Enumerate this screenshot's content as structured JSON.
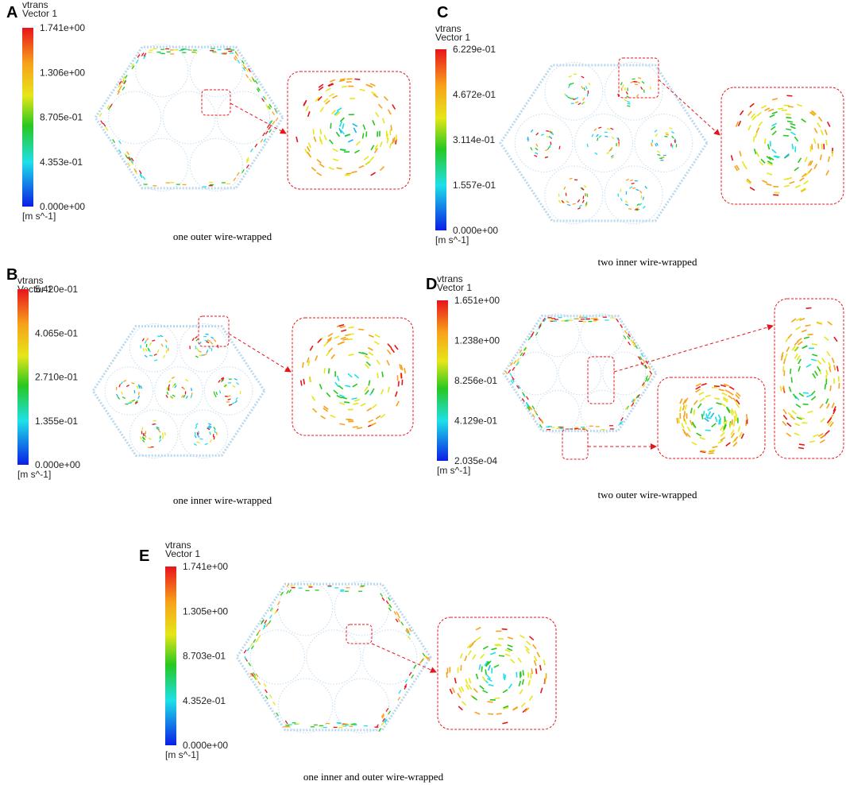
{
  "panels": [
    {
      "label": "A",
      "legend": {
        "title": "vtrans",
        "subtitle": "Vector 1",
        "ticks": [
          "1.741e+00",
          "1.306e+00",
          "8.705e-01",
          "4.353e-01",
          "0.000e+00"
        ],
        "unit": "[m s^-1]"
      },
      "caption": "one outer wire-wrapped"
    },
    {
      "label": "B",
      "legend": {
        "title": "vtrans",
        "subtitle": "Vector 1",
        "ticks": [
          "5.420e-01",
          "4.065e-01",
          "2.710e-01",
          "1.355e-01",
          "0.000e+00"
        ],
        "unit": "[m s^-1]"
      },
      "caption": "one inner wire-wrapped"
    },
    {
      "label": "C",
      "legend": {
        "title": "vtrans",
        "subtitle": "Vector 1",
        "ticks": [
          "6.229e-01",
          "4.672e-01",
          "3.114e-01",
          "1.557e-01",
          "0.000e+00"
        ],
        "unit": "[m s^-1]"
      },
      "caption": "two inner wire-wrapped"
    },
    {
      "label": "D",
      "legend": {
        "title": "vtrans",
        "subtitle": "Vector 1",
        "ticks": [
          "1.651e+00",
          "1.238e+00",
          "8.256e-01",
          "4.129e-01",
          "2.035e-04"
        ],
        "unit": "[m s^-1]"
      },
      "caption": "two outer wire-wrapped"
    },
    {
      "label": "E",
      "legend": {
        "title": "vtrans",
        "subtitle": "Vector 1",
        "ticks": [
          "1.741e+00",
          "1.305e+00",
          "8.703e-01",
          "4.352e-01",
          "0.000e+00"
        ],
        "unit": "[m s^-1]"
      },
      "caption": "one inner and outer wire-wrapped"
    }
  ]
}
